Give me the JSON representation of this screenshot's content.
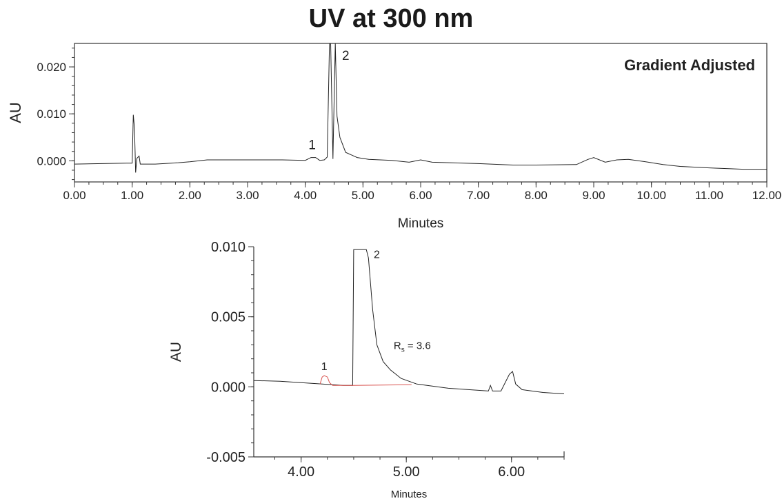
{
  "title": "UV at 300 nm",
  "chart_data": [
    {
      "type": "line",
      "title": "UV at 300 nm",
      "annotation": "Gradient Adjusted",
      "xlabel": "Minutes",
      "ylabel": "AU",
      "xlim": [
        0,
        12
      ],
      "ylim": [
        -0.0045,
        0.025
      ],
      "xticks": [
        "0.00",
        "1.00",
        "2.00",
        "3.00",
        "4.00",
        "5.00",
        "6.00",
        "7.00",
        "8.00",
        "9.00",
        "10.00",
        "11.00",
        "12.00"
      ],
      "yticks": [
        "0.020",
        "0.010",
        "0.000"
      ],
      "peak_labels": [
        {
          "text": "1",
          "x": 4.12,
          "y": 0.0025
        },
        {
          "text": "2",
          "x": 4.7,
          "y": 0.0215
        }
      ],
      "series": [
        {
          "x": [
            0.0,
            0.9,
            1.0,
            1.02,
            1.04,
            1.06,
            1.08,
            1.12,
            1.14,
            1.2,
            1.4,
            1.8,
            2.0,
            2.3,
            3.0,
            3.6,
            4.0,
            4.1,
            4.18,
            4.25,
            4.33,
            4.38,
            4.42,
            4.44,
            4.48,
            4.52,
            4.55,
            4.6,
            4.7,
            4.9,
            5.1,
            5.5,
            5.8,
            6.0,
            6.2,
            7.0,
            7.6,
            8.0,
            8.7,
            8.9,
            9.0,
            9.2,
            9.4,
            9.6,
            9.9,
            10.2,
            10.5,
            11.0,
            11.6,
            12.0
          ],
          "y": [
            -0.0007,
            -0.0005,
            -0.0005,
            0.0098,
            0.007,
            -0.0025,
            0.0005,
            0.001,
            -0.0007,
            -0.0007,
            -0.0007,
            -0.0004,
            -0.0002,
            0.0002,
            0.0002,
            0.0002,
            0.0001,
            0.0007,
            0.0007,
            0.0001,
            0.0002,
            0.0008,
            0.025,
            0.025,
            0.0004,
            0.025,
            0.0095,
            0.005,
            0.0018,
            0.0007,
            0.0003,
            0.0001,
            -0.0003,
            0.0002,
            -0.0003,
            -0.0006,
            -0.0009,
            -0.0009,
            -0.0008,
            0.0003,
            0.0007,
            -0.0003,
            0.0002,
            0.0003,
            -0.0002,
            -0.0008,
            -0.0012,
            -0.0015,
            -0.0018,
            -0.0018
          ]
        }
      ]
    },
    {
      "type": "line",
      "xlabel": "Minutes",
      "ylabel": "AU",
      "xlim": [
        3.55,
        6.5
      ],
      "ylim": [
        -0.005,
        0.01
      ],
      "xticks": [
        "4.00",
        "5.00",
        "6.00"
      ],
      "yticks": [
        "0.010",
        "0.005",
        "0.000",
        "-0.005"
      ],
      "annotation": "R",
      "annotation_sub": "s",
      "annotation_value": " = 3.6",
      "peak_labels": [
        {
          "text": "1",
          "x": 4.22,
          "y": 0.0012
        },
        {
          "text": "2",
          "x": 4.72,
          "y": 0.0092
        }
      ],
      "series": [
        {
          "x": [
            3.55,
            3.8,
            4.0,
            4.2,
            4.3,
            4.4,
            4.49,
            4.5,
            4.6,
            4.62,
            4.64,
            4.68,
            4.72,
            4.78,
            4.85,
            4.95,
            5.1,
            5.4,
            5.78,
            5.8,
            5.82,
            5.9,
            5.98,
            6.01,
            6.04,
            6.1,
            6.3,
            6.5
          ],
          "y": [
            0.00045,
            0.0004,
            0.0003,
            0.0002,
            0.00015,
            0.0001,
            0.0001,
            0.0098,
            0.0098,
            0.0098,
            0.0092,
            0.0055,
            0.003,
            0.0018,
            0.0012,
            0.0006,
            0.0002,
            -0.0001,
            -0.0003,
            0.0001,
            -0.0003,
            -0.0003,
            0.0009,
            0.0011,
            0.0002,
            -0.0002,
            -0.0004,
            -0.0005
          ]
        },
        {
          "color": "#d9534f",
          "x": [
            4.18,
            4.2,
            4.22,
            4.25,
            4.27,
            4.3,
            4.5,
            5.05
          ],
          "y": [
            0.0002,
            0.0007,
            0.0008,
            0.0007,
            0.0003,
            0.0001,
            0.0001,
            0.00015
          ]
        }
      ]
    }
  ]
}
